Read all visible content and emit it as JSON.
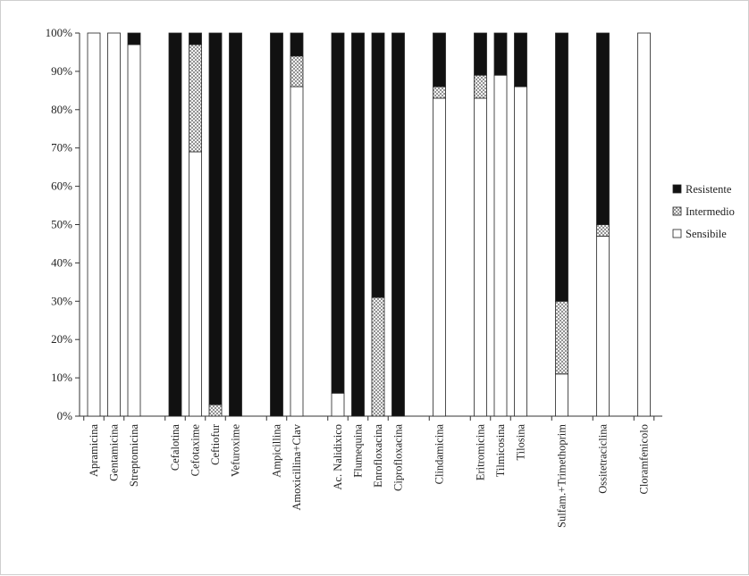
{
  "chart_data": {
    "type": "bar",
    "stacked": true,
    "percent": true,
    "title": "",
    "xlabel": "",
    "ylabel": "",
    "ylim": [
      0,
      100
    ],
    "y_ticks": [
      "0%",
      "10%",
      "20%",
      "30%",
      "40%",
      "50%",
      "60%",
      "70%",
      "80%",
      "90%",
      "100%"
    ],
    "grid": false,
    "legend_position": "right",
    "categories": [
      "Apramicina",
      "Gentamicina",
      "Streptomicina",
      "Cefalotina",
      "Cefotaxime",
      "Ceftiofur",
      "Vefuroxime",
      "Ampicillina",
      "Amoxicillina+Clav",
      "Ac. Nalidixico",
      "Flumequina",
      "Enrofloxacina",
      "Ciprofloxacina",
      "Clindamicina",
      "Eritromicina",
      "Tilmicosina",
      "Tilosina",
      "Sulfam.+Trimethoprim",
      "Ossitetraciclina",
      "Cloramfenicolo"
    ],
    "category_groups": [
      [
        0,
        1,
        2
      ],
      [
        3,
        4,
        5,
        6
      ],
      [
        7,
        8
      ],
      [
        9,
        10,
        11,
        12
      ],
      [
        13
      ],
      [
        14,
        15,
        16
      ],
      [
        17
      ],
      [
        18
      ],
      [
        19
      ]
    ],
    "series": [
      {
        "name": "Sensibile",
        "values": [
          100,
          100,
          97,
          0,
          69,
          0,
          0,
          0,
          86,
          6,
          0,
          0,
          0,
          83,
          83,
          89,
          86,
          11,
          47,
          100
        ]
      },
      {
        "name": "Intermedio",
        "values": [
          0,
          0,
          0,
          0,
          28,
          3,
          0,
          0,
          8,
          0,
          0,
          31,
          0,
          3,
          6,
          0,
          0,
          19,
          3,
          0
        ]
      },
      {
        "name": "Resistente",
        "values": [
          0,
          0,
          3,
          100,
          3,
          97,
          100,
          100,
          6,
          94,
          100,
          69,
          100,
          14,
          11,
          11,
          14,
          70,
          50,
          0
        ]
      }
    ],
    "legend": [
      "Resistente",
      "Intermedio",
      "Sensibile"
    ],
    "colors": {
      "Resistente": "#111111",
      "Intermedio": "#dcdcdc",
      "Sensibile": "#ffffff"
    }
  }
}
